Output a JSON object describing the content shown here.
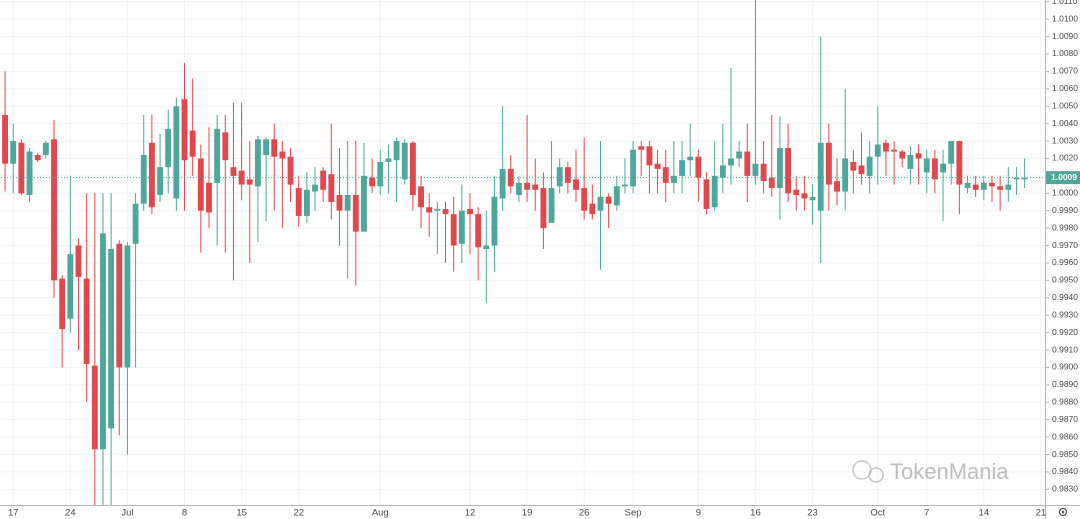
{
  "chart_data": {
    "type": "candlestick",
    "watermark": "TokenMania",
    "up_color": "#4fa69a",
    "down_color": "#e0484e",
    "grid": true,
    "ylim": [
      0.9821,
      1.0111
    ],
    "yticks": [
      {
        "value": 0.983,
        "label": "0.9830"
      },
      {
        "value": 0.984,
        "label": "0.9840"
      },
      {
        "value": 0.985,
        "label": "0.9850"
      },
      {
        "value": 0.986,
        "label": "0.9860"
      },
      {
        "value": 0.987,
        "label": "0.9870"
      },
      {
        "value": 0.988,
        "label": "0.9880"
      },
      {
        "value": 0.989,
        "label": "0.9890"
      },
      {
        "value": 0.99,
        "label": "0.9900"
      },
      {
        "value": 0.991,
        "label": "0.9910"
      },
      {
        "value": 0.992,
        "label": "0.9920"
      },
      {
        "value": 0.993,
        "label": "0.9930"
      },
      {
        "value": 0.994,
        "label": "0.9940"
      },
      {
        "value": 0.995,
        "label": "0.9950"
      },
      {
        "value": 0.996,
        "label": "0.9960"
      },
      {
        "value": 0.997,
        "label": "0.9970"
      },
      {
        "value": 0.998,
        "label": "0.9980"
      },
      {
        "value": 0.999,
        "label": "0.9990"
      },
      {
        "value": 1.0,
        "label": "1.0000"
      },
      {
        "value": 1.001,
        "label": "1.0010"
      },
      {
        "value": 1.002,
        "label": "1.0020"
      },
      {
        "value": 1.003,
        "label": "1.0030"
      },
      {
        "value": 1.004,
        "label": "1.0040"
      },
      {
        "value": 1.005,
        "label": "1.0050"
      },
      {
        "value": 1.006,
        "label": "1.0060"
      },
      {
        "value": 1.007,
        "label": "1.0070"
      },
      {
        "value": 1.008,
        "label": "1.0080"
      },
      {
        "value": 1.009,
        "label": "1.0090"
      },
      {
        "value": 1.01,
        "label": "1.0100"
      },
      {
        "value": 1.011,
        "label": "1.0110"
      }
    ],
    "last_price": {
      "value": 1.0009,
      "label": "1.0009"
    },
    "categories": [
      null,
      "17",
      null,
      null,
      null,
      null,
      null,
      null,
      "24",
      null,
      null,
      null,
      null,
      null,
      null,
      "Jul",
      null,
      null,
      null,
      null,
      null,
      null,
      "8",
      null,
      null,
      null,
      null,
      null,
      null,
      "15",
      null,
      null,
      null,
      null,
      null,
      null,
      "22",
      null,
      null,
      null,
      null,
      null,
      null,
      null,
      null,
      null,
      "Aug",
      null,
      null,
      null,
      null,
      null,
      null,
      null,
      null,
      null,
      null,
      "12",
      null,
      null,
      null,
      null,
      null,
      null,
      "19",
      null,
      null,
      null,
      null,
      null,
      null,
      "26",
      null,
      null,
      null,
      null,
      null,
      "Sep",
      null,
      null,
      null,
      null,
      null,
      null,
      null,
      "9",
      null,
      null,
      null,
      null,
      null,
      null,
      "16",
      null,
      null,
      null,
      null,
      null,
      null,
      "23",
      null,
      null,
      null,
      null,
      null,
      null,
      null,
      "Oct",
      null,
      null,
      null,
      null,
      null,
      "7",
      null,
      null,
      null,
      null,
      null,
      null,
      "14",
      null,
      null,
      null,
      null,
      null,
      null,
      "21"
    ],
    "open": [
      1.0045,
      1.0017,
      1.0029,
      0.9999,
      1.0022,
      1.0022,
      1.0031,
      0.9951,
      0.9928,
      0.997,
      0.9951,
      0.9901,
      0.9853,
      0.9865,
      0.9971,
      0.99,
      0.9971,
      0.9994,
      1.0029,
      0.9999,
      1.0015,
      0.9997,
      1.0054,
      1.0036,
      1.002,
      1.0006,
      1.0006,
      1.0035,
      1.0015,
      1.0013,
      1.0008,
      1.0004,
      1.0022,
      1.0031,
      1.0024,
      1.0021,
      1.0003,
      0.9987,
      1.0001,
      1.0013,
      1.0011,
      0.9999,
      0.999,
      0.9999,
      0.9978,
      1.0009,
      1.0004,
      1.0018,
      1.0019,
      1.0008,
      1.0029,
      1.0004,
      0.9992,
      0.999,
      0.9991,
      0.9988,
      0.9971,
      0.9991,
      0.9988,
      0.9968,
      0.997,
      0.9997,
      1.0014,
      0.9999,
      1.0006,
      1.0005,
      1.0003,
      0.9983,
      1.0004,
      1.0015,
      1.0008,
      1.0003,
      0.9994,
      0.999,
      0.9998,
      0.9993,
      1.0004,
      1.0004,
      1.0027,
      1.0027,
      1.0017,
      1.0015,
      1.0006,
      1.001,
      1.0019,
      1.0021,
      1.0008,
      0.9992,
      1.0009,
      1.0016,
      1.002,
      1.0024,
      1.001,
      1.0017,
      1.0009,
      1.0003,
      1.0026,
      1.0002,
      1.0,
      0.9996,
      0.999,
      1.0029,
      1.0007,
      1.0001,
      1.0018,
      1.0016,
      1.001,
      1.0021,
      1.0029,
      1.0025,
      1.0024,
      1.0014,
      1.0023,
      1.0012,
      1.002,
      1.0012,
      1.0017,
      1.003,
      1.0003,
      1.0005,
      1.0002,
      1.0006,
      1.0004,
      1.0002,
      1.0008,
      1.0008,
      null,
      null
    ],
    "high": [
      1.007,
      1.004,
      1.0031,
      1.0026,
      1.0023,
      1.003,
      1.0042,
      0.9953,
      1.001,
      0.9974,
      1.0,
      1.0,
      1.0,
      1.0,
      0.9973,
      0.9972,
      1.0,
      1.0045,
      1.0045,
      1.0034,
      1.0048,
      1.0055,
      1.0075,
      1.0066,
      1.0028,
      1.0038,
      1.0045,
      1.0045,
      1.0052,
      1.0052,
      1.003,
      1.0033,
      1.0032,
      1.004,
      1.003,
      1.0026,
      1.001,
      1.0012,
      1.0015,
      1.0015,
      1.004,
      1.0026,
      1.003,
      1.003,
      1.0029,
      1.002,
      1.0025,
      1.0028,
      1.0032,
      1.0031,
      1.003,
      1.001,
      1.0,
      0.9995,
      0.9995,
      0.9998,
      1.0005,
      1.0,
      0.9992,
      0.999,
      1.001,
      1.005,
      1.0022,
      1.001,
      1.0045,
      1.002,
      1.0012,
      1.003,
      1.002,
      1.0018,
      1.0025,
      1.0032,
      1.0005,
      1.003,
      1.0,
      1.001,
      1.002,
      1.003,
      1.003,
      1.003,
      1.0025,
      1.0025,
      1.003,
      1.003,
      1.004,
      1.0025,
      1.0012,
      1.003,
      1.004,
      1.0072,
      1.003,
      1.004,
      1.0111,
      1.003,
      1.0045,
      1.0044,
      1.004,
      1.001,
      1.001,
      1.0005,
      1.009,
      1.004,
      1.002,
      1.006,
      1.0025,
      1.0035,
      1.003,
      1.005,
      1.0031,
      1.003,
      1.0025,
      1.0027,
      1.0028,
      1.0025,
      1.0025,
      1.0025,
      1.003,
      1.003,
      1.001,
      1.001,
      1.001,
      1.001,
      1.001,
      1.0015,
      1.0015,
      1.002,
      null,
      null
    ],
    "low": [
      1.0001,
      1.0,
      0.9999,
      0.9995,
      1.0018,
      1.002,
      0.994,
      0.99,
      0.992,
      0.991,
      0.988,
      0.9821,
      0.9821,
      0.9821,
      0.9861,
      0.985,
      0.99,
      0.999,
      0.9988,
      0.9995,
      1.0,
      0.999,
      0.999,
      1.001,
      0.9966,
      0.998,
      0.997,
      0.9966,
      0.995,
      0.9996,
      0.996,
      0.9972,
      0.9984,
      0.999,
      0.998,
      0.9995,
      0.9981,
      0.9983,
      0.999,
      0.9995,
      0.9985,
      0.997,
      0.9951,
      0.9947,
      0.9978,
      1.0,
      0.9999,
      1.0,
      0.9995,
      1.0005,
      0.999,
      0.998,
      0.9975,
      0.9965,
      0.996,
      0.9955,
      0.996,
      0.9965,
      0.995,
      0.9937,
      0.9955,
      0.999,
      1.0,
      0.9995,
      0.9995,
      0.999,
      0.9968,
      0.9983,
      1.0,
      1.0,
      0.9995,
      0.9985,
      0.9985,
      0.9956,
      0.998,
      0.999,
      1.0,
      1.0,
      1.001,
      1.0,
      1.0,
      0.9995,
      1.0,
      1.0,
      1.001,
      0.9995,
      0.9988,
      0.999,
      1.0,
      1.0005,
      1.0015,
      0.9995,
      1.0005,
      1.0,
      0.9998,
      0.9985,
      0.9995,
      0.999,
      0.999,
      0.9982,
      0.996,
      0.999,
      0.9993,
      0.999,
      1.0,
      1.0005,
      1.0,
      1.0005,
      1.001,
      1.0005,
      1.0015,
      1.0005,
      1.0005,
      1.0,
      1.0,
      0.9984,
      1.0005,
      0.9988,
      1.0,
      0.9998,
      0.9996,
      0.9995,
      0.999,
      0.9995,
      0.9999,
      1.0003,
      null,
      null
    ],
    "close": [
      1.0017,
      1.003,
      1.0,
      1.0024,
      1.0019,
      1.0029,
      0.995,
      0.9922,
      0.9965,
      0.9952,
      0.9902,
      0.9853,
      0.9977,
      0.9968,
      0.99,
      0.997,
      0.9994,
      1.0022,
      0.9992,
      1.0015,
      1.0037,
      1.005,
      1.0019,
      1.0021,
      0.999,
      0.9989,
      1.0037,
      1.0019,
      1.001,
      1.0005,
      1.0005,
      1.0031,
      1.0031,
      1.0021,
      1.002,
      1.0005,
      0.9987,
      1.0002,
      1.0005,
      1.0002,
      0.9995,
      0.999,
      0.9999,
      0.9978,
      1.001,
      1.0004,
      1.0018,
      1.002,
      1.003,
      1.0029,
      0.9999,
      0.9992,
      0.9989,
      0.9991,
      0.9988,
      0.997,
      0.999,
      0.9988,
      0.9969,
      0.997,
      0.9998,
      1.0014,
      1.0004,
      1.0006,
      1.0002,
      1.0002,
      0.998,
      1.0003,
      1.0015,
      1.0006,
      1.0002,
      0.999,
      0.9988,
      0.9998,
      0.9994,
      1.0004,
      1.0005,
      1.0025,
      1.0025,
      1.0016,
      1.0014,
      1.0006,
      1.001,
      1.0019,
      1.0021,
      1.0009,
      0.9991,
      1.001,
      1.0016,
      1.002,
      1.0024,
      1.001,
      1.0017,
      1.0007,
      1.0003,
      1.0026,
      1.0,
      0.9999,
      0.9997,
      0.9998,
      1.0029,
      1.0005,
      1.0001,
      1.002,
      1.0013,
      1.0011,
      1.0021,
      1.0028,
      1.0024,
      1.0024,
      1.002,
      1.0022,
      1.002,
      1.002,
      1.0008,
      1.0017,
      1.003,
      1.0005,
      1.0006,
      1.0002,
      1.0006,
      1.0004,
      1.0002,
      1.0005,
      1.0009,
      1.0009,
      null,
      null
    ]
  }
}
